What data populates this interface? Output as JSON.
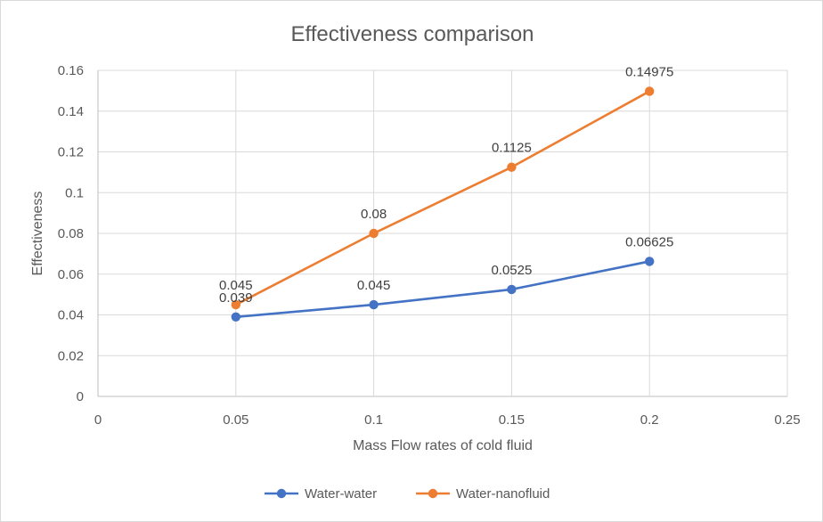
{
  "chart_data": {
    "type": "line",
    "title": "Effectiveness comparison",
    "xlabel": "Mass Flow rates of cold fluid",
    "ylabel": "Effectiveness",
    "xlim": [
      0,
      0.25
    ],
    "ylim": [
      0,
      0.16
    ],
    "x_ticks": [
      "0",
      "0.05",
      "0.1",
      "0.15",
      "0.2",
      "0.25"
    ],
    "y_ticks": [
      "0",
      "0.02",
      "0.04",
      "0.06",
      "0.08",
      "0.1",
      "0.12",
      "0.14",
      "0.16"
    ],
    "grid": true,
    "legend_position": "bottom",
    "x": [
      0.05,
      0.1,
      0.15,
      0.2
    ],
    "series": [
      {
        "name": "Water-water",
        "color": "#4472c4",
        "values": [
          0.039,
          0.045,
          0.0525,
          0.06625
        ],
        "labels": [
          "0.039",
          "0.045",
          "0.0525",
          "0.06625"
        ]
      },
      {
        "name": "Water-nanofluid",
        "color": "#ed7d31",
        "values": [
          0.045,
          0.08,
          0.1125,
          0.14975
        ],
        "labels": [
          "0.045",
          "0.08",
          "0.1125",
          "0.14975"
        ]
      }
    ]
  }
}
